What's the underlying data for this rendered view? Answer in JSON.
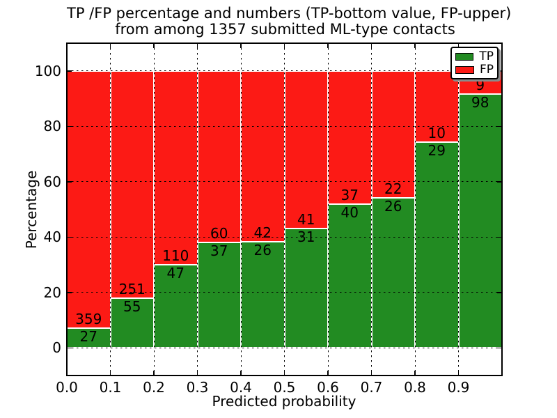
{
  "chart_data": {
    "type": "bar",
    "stacked": true,
    "normalized_to_percent": true,
    "title": "TP /FP percentage and numbers (TP-bottom value, FP-upper)\nfrom among 1357 submitted ML-type contacts",
    "title_lines": [
      "TP /FP percentage and numbers (TP-bottom value, FP-upper)",
      "from among 1357 submitted ML-type contacts"
    ],
    "xlabel": "Predicted probability",
    "ylabel": "Percentage",
    "total_contacts": 1357,
    "bin_width": 0.1,
    "categories": [
      "0.0",
      "0.1",
      "0.2",
      "0.3",
      "0.4",
      "0.5",
      "0.6",
      "0.7",
      "0.8",
      "0.9"
    ],
    "series": [
      {
        "name": "TP",
        "color": "#228b22",
        "counts": [
          27,
          55,
          47,
          37,
          26,
          31,
          40,
          26,
          29,
          98
        ]
      },
      {
        "name": "FP",
        "color": "#fc1a15",
        "counts": [
          359,
          251,
          110,
          60,
          42,
          41,
          37,
          22,
          10,
          9
        ]
      }
    ],
    "tp_percent": [
      7.0,
      18.0,
      29.9,
      38.1,
      38.2,
      43.1,
      51.9,
      54.2,
      74.4,
      91.6
    ],
    "xticks": [
      "0.0",
      "0.1",
      "0.2",
      "0.3",
      "0.4",
      "0.5",
      "0.6",
      "0.7",
      "0.8",
      "0.9"
    ],
    "yticks": [
      0,
      20,
      40,
      60,
      80,
      100
    ],
    "xlim": [
      0.0,
      1.0
    ],
    "ylim": [
      -10,
      110
    ],
    "grid": "dashed black, on top of bars",
    "bar_edge_color": "#ffffff",
    "legend": {
      "position": "upper right",
      "entries": [
        "TP",
        "FP"
      ]
    }
  }
}
